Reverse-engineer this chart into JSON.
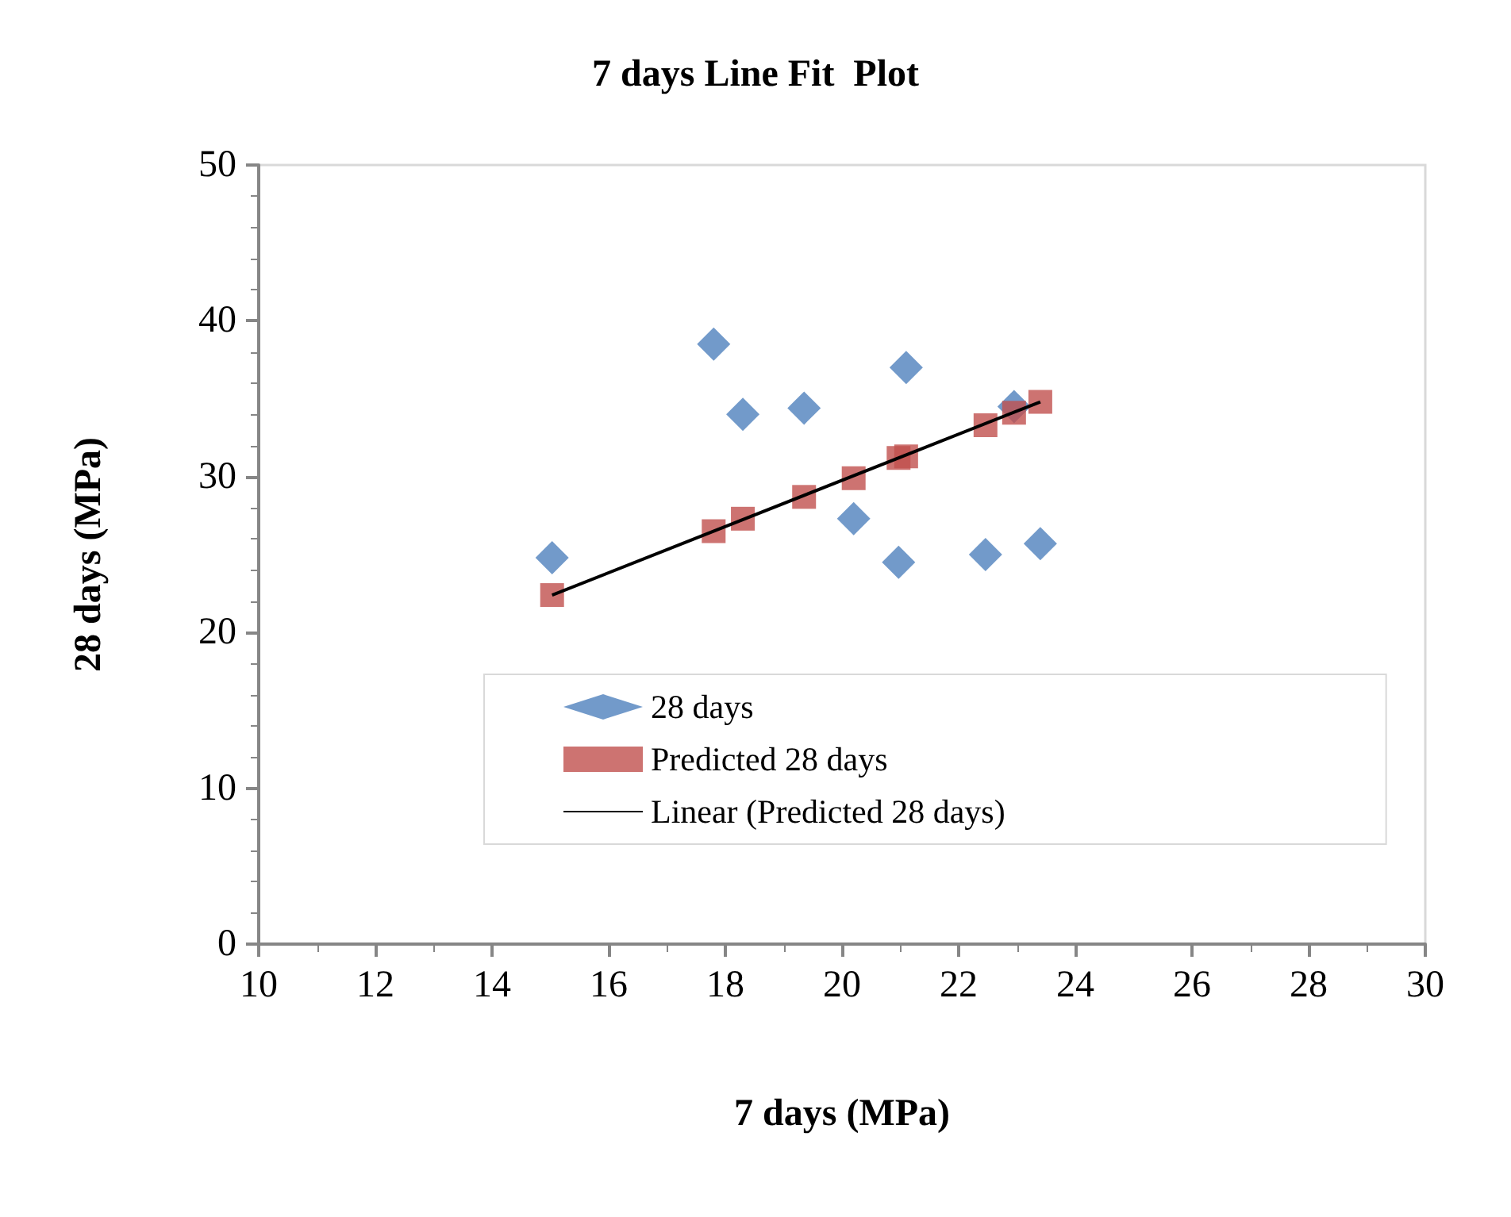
{
  "chart_data": {
    "type": "scatter",
    "title": "7 days Line Fit  Plot",
    "xlabel": "7 days (MPa)",
    "ylabel": "28 days (MPa)",
    "x": [
      15.03,
      17.8,
      18.3,
      19.35,
      20.2,
      20.97,
      21.1,
      22.46,
      22.95,
      23.4
    ],
    "series": [
      {
        "name": "28 days",
        "color": "#4f81bd",
        "marker": "diamond",
        "values": [
          24.8,
          38.5,
          34.0,
          34.4,
          27.3,
          24.5,
          37.0,
          25.0,
          34.5,
          25.7
        ]
      },
      {
        "name": "Predicted 28 days",
        "color": "#c0504d",
        "marker": "square",
        "values": [
          22.4,
          26.5,
          27.3,
          28.7,
          29.9,
          31.2,
          31.3,
          33.3,
          34.1,
          34.8
        ]
      },
      {
        "name": "Linear (Predicted 28 days)",
        "type": "line",
        "color": "#000000",
        "marker": "none",
        "x": [
          15.03,
          23.4
        ],
        "values": [
          22.4,
          34.8
        ]
      }
    ],
    "xlim": [
      10,
      30
    ],
    "xticks": [
      10,
      12,
      14,
      16,
      18,
      20,
      22,
      24,
      26,
      28,
      30
    ],
    "ylim": [
      0,
      50
    ],
    "yticks": [
      0,
      10,
      20,
      30,
      40,
      50
    ],
    "grid": false,
    "legend": "bottom"
  }
}
